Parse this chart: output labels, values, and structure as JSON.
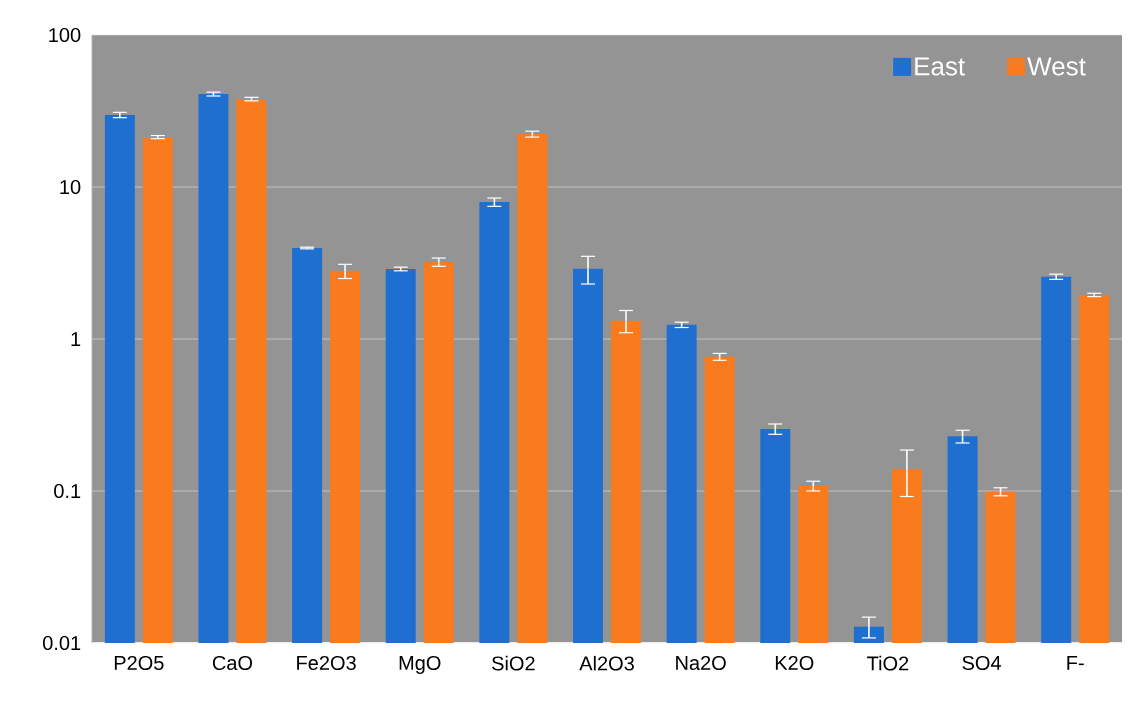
{
  "chart_data": {
    "type": "bar",
    "categories": [
      "P2O5",
      "CaO",
      "Fe2O3",
      "MgO",
      "SiO2",
      "Al2O3",
      "Na2O",
      "K2O",
      "TiO2",
      "SO4",
      "F-"
    ],
    "series": [
      {
        "name": "East",
        "color": "#1f6fd0",
        "values": [
          29.8,
          40.9,
          3.97,
          2.89,
          7.96,
          2.9,
          1.24,
          0.256,
          0.0128,
          0.229,
          2.57
        ],
        "errors": [
          1.2,
          1.2,
          0.05,
          0.08,
          0.5,
          0.6,
          0.05,
          0.02,
          0.002,
          0.022,
          0.1
        ]
      },
      {
        "name": "West",
        "color": "#fa7a1e",
        "values": [
          21.3,
          37.9,
          2.8,
          3.21,
          22.3,
          1.32,
          0.764,
          0.108,
          0.139,
          0.099,
          1.95
        ],
        "errors": [
          0.5,
          1,
          0.3,
          0.2,
          1,
          0.22,
          0.04,
          0.008,
          0.047,
          0.006,
          0.05
        ]
      }
    ],
    "log": true,
    "ylim": [
      0.01,
      100
    ],
    "yticks": [
      0.01,
      0.1,
      1,
      10,
      100
    ],
    "grid": "y",
    "legend": "top right"
  }
}
